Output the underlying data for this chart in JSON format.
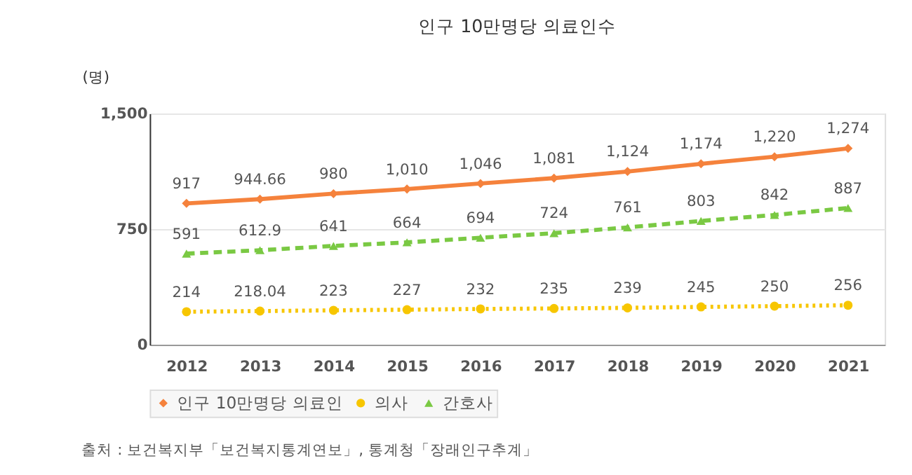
{
  "chart_data": {
    "type": "line",
    "title": "인구 10만명당 의료인수",
    "ylabel": "(명)",
    "categories": [
      "2012",
      "2013",
      "2014",
      "2015",
      "2016",
      "2017",
      "2018",
      "2019",
      "2020",
      "2021"
    ],
    "ylim": [
      0,
      1500
    ],
    "yticks": [
      0,
      750,
      {
        "value": 1500,
        "label": "1,500"
      }
    ],
    "grid": "y",
    "legend": "bottom",
    "series": [
      {
        "name": "인구 10만명당 의료인",
        "color": "#f5823c",
        "marker": "diamond",
        "line_style": "solid",
        "values": [
          917,
          944.66,
          980,
          1010,
          1046,
          1081,
          1124,
          1174,
          1220,
          1274
        ],
        "value_labels": [
          "917",
          "944.66",
          "980",
          "1,010",
          "1,046",
          "1,081",
          "1,124",
          "1,174",
          "1,220",
          "1,274"
        ]
      },
      {
        "name": "의사",
        "color": "#f7c600",
        "marker": "circle",
        "line_style": "dotted",
        "values": [
          214,
          218.04,
          223,
          227,
          232,
          235,
          239,
          245,
          250,
          256
        ],
        "value_labels": [
          "214",
          "218.04",
          "223",
          "227",
          "232",
          "235",
          "239",
          "245",
          "250",
          "256"
        ]
      },
      {
        "name": "간호사",
        "color": "#7ac943",
        "marker": "triangle",
        "line_style": "dashed",
        "values": [
          591,
          612.9,
          641,
          664,
          694,
          724,
          761,
          803,
          842,
          887
        ],
        "value_labels": [
          "591",
          "612.9",
          "641",
          "664",
          "694",
          "724",
          "761",
          "803",
          "842",
          "887"
        ]
      }
    ],
    "annotations": [
      "출처 : 보건복지부「보건복지통계연보」, 통계청「장래인구추계」"
    ]
  }
}
